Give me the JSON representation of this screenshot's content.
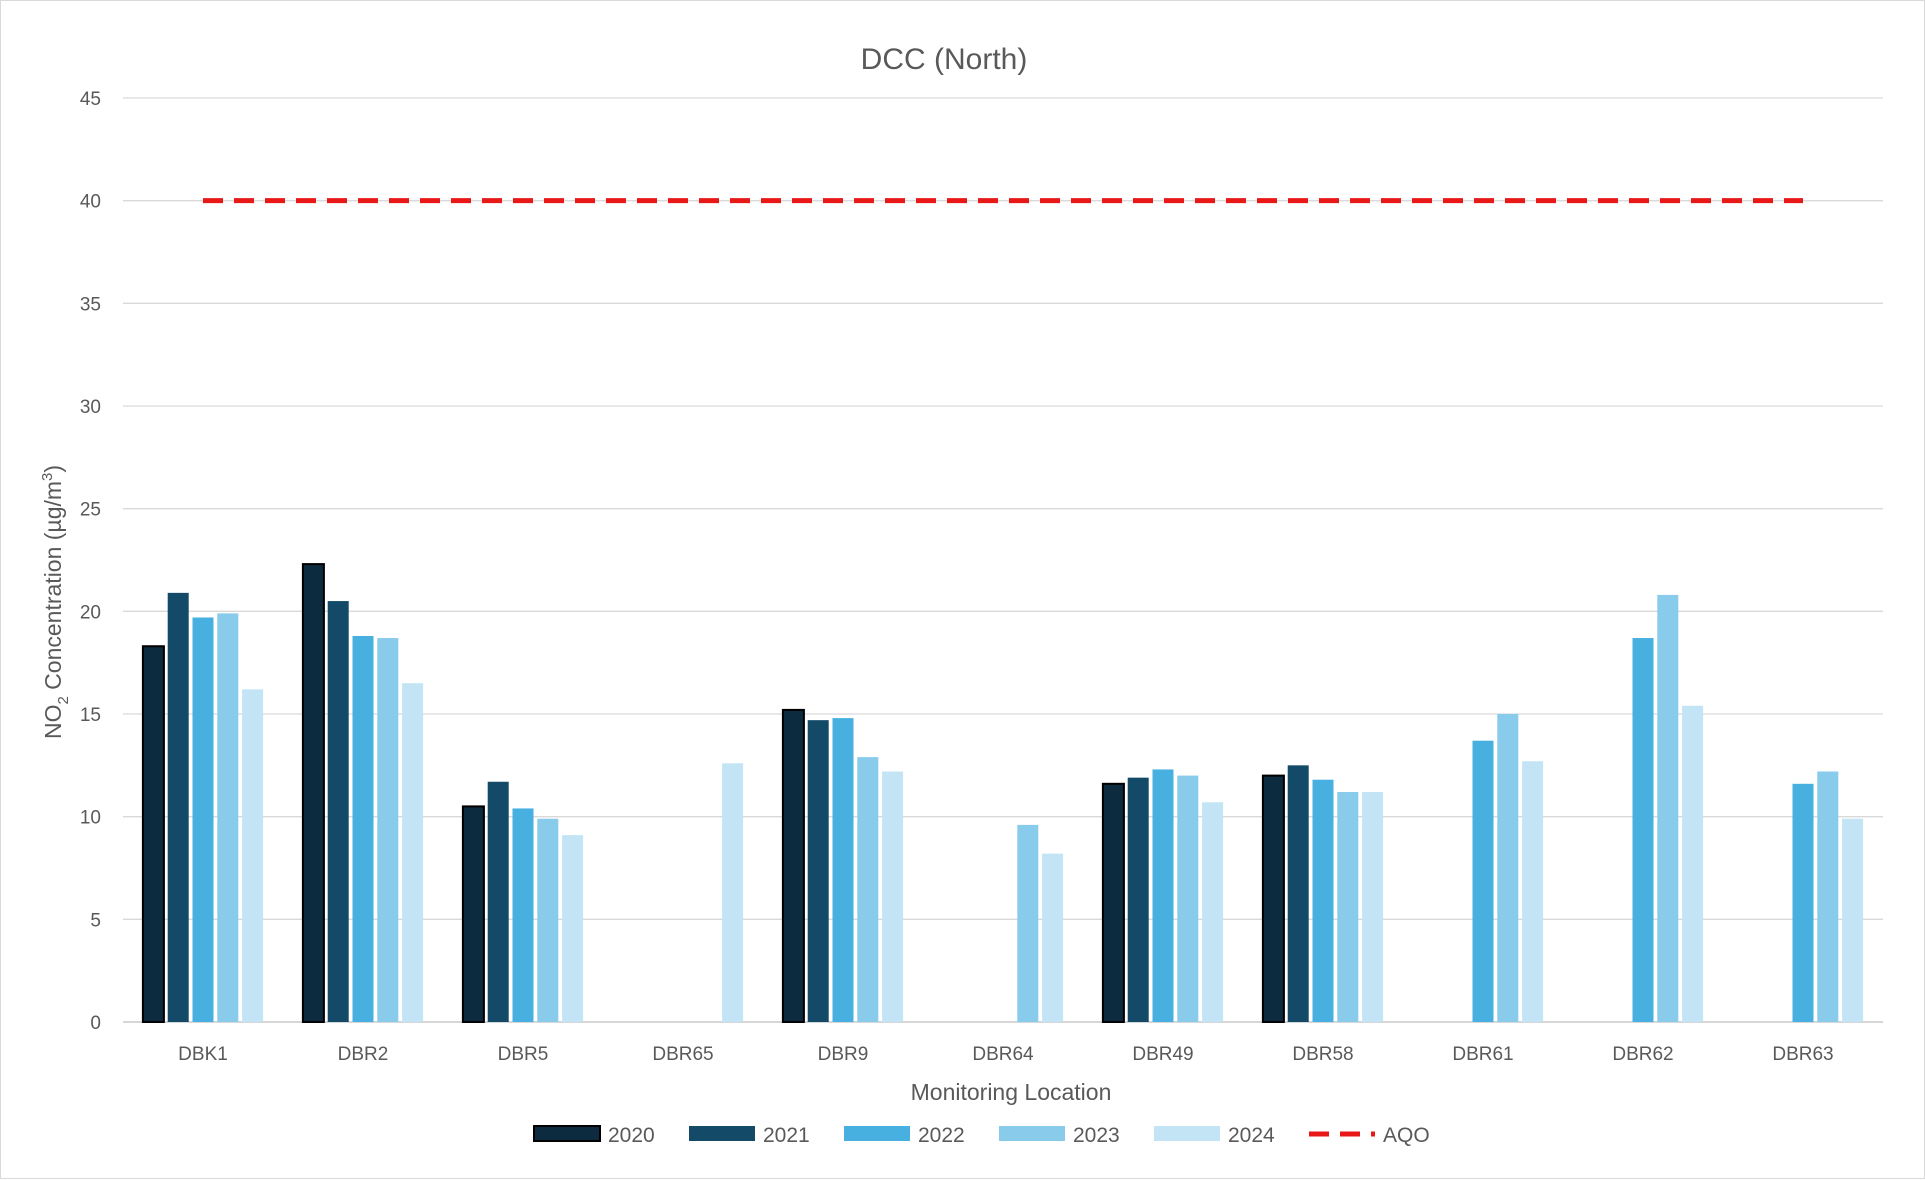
{
  "chart_data": {
    "type": "bar",
    "title": "DCC (North)",
    "xlabel": "Monitoring Location",
    "ylabel_main": "NO",
    "ylabel_sub": "2",
    "ylabel_mid": " Concentration (µg/m",
    "ylabel_sup": "3",
    "ylabel_end": ")",
    "ylim": [
      0,
      45
    ],
    "yticks": [
      0,
      5,
      10,
      15,
      20,
      25,
      30,
      35,
      40,
      45
    ],
    "grid": true,
    "legend_position": "bottom",
    "categories": [
      "DBK1",
      "DBR2",
      "DBR5",
      "DBR65",
      "DBR9",
      "DBR64",
      "DBR49",
      "DBR58",
      "DBR61",
      "DBR62",
      "DBR63"
    ],
    "series": [
      {
        "name": "2020",
        "color": "#0d2b3e",
        "outline": true,
        "values": [
          18.3,
          22.3,
          10.5,
          null,
          15.2,
          null,
          11.6,
          12.0,
          null,
          null,
          null
        ]
      },
      {
        "name": "2021",
        "color": "#134a68",
        "outline": false,
        "values": [
          20.9,
          20.5,
          11.7,
          null,
          14.7,
          null,
          11.9,
          12.5,
          null,
          null,
          null
        ]
      },
      {
        "name": "2022",
        "color": "#47b0e0",
        "outline": false,
        "values": [
          19.7,
          18.8,
          10.4,
          null,
          14.8,
          null,
          12.3,
          11.8,
          13.7,
          18.7,
          11.6
        ]
      },
      {
        "name": "2023",
        "color": "#88cbeb",
        "outline": false,
        "values": [
          19.9,
          18.7,
          9.9,
          null,
          12.9,
          9.6,
          12.0,
          11.2,
          15.0,
          20.8,
          12.2
        ]
      },
      {
        "name": "2024",
        "color": "#c3e4f5",
        "outline": false,
        "values": [
          16.2,
          16.5,
          9.1,
          12.6,
          12.2,
          8.2,
          10.7,
          11.2,
          12.7,
          15.4,
          9.9
        ]
      }
    ],
    "reference_line": {
      "name": "AQO",
      "value": 40,
      "color": "#e81818",
      "style": "dashed"
    }
  }
}
